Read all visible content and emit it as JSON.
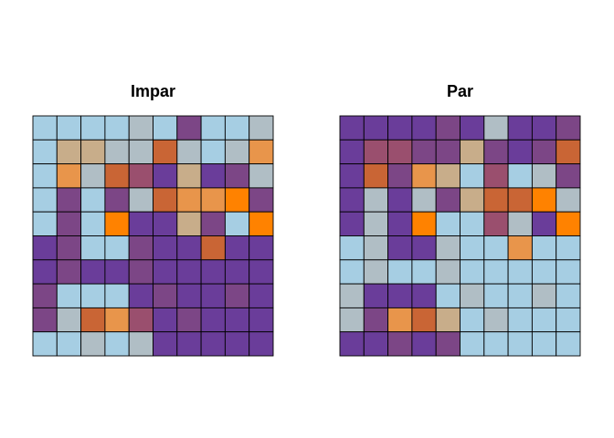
{
  "palette": {
    "L": "#a6cee3",
    "T": "#c8ad8a",
    "G": "#b0bec5",
    "D": "#c96535",
    "O": "#e8954b",
    "F": "#ff8200",
    "P": "#6a3d9a",
    "M": "#7c4686",
    "R": "#9a4f6e"
  },
  "chart_data": [
    {
      "type": "heatmap",
      "title": "Impar",
      "grid": [
        [
          "L",
          "L",
          "L",
          "L",
          "G",
          "L",
          "M",
          "L",
          "L",
          "G"
        ],
        [
          "L",
          "T",
          "T",
          "G",
          "G",
          "D",
          "G",
          "L",
          "G",
          "O"
        ],
        [
          "L",
          "O",
          "G",
          "D",
          "R",
          "P",
          "T",
          "P",
          "M",
          "G"
        ],
        [
          "L",
          "M",
          "L",
          "M",
          "G",
          "D",
          "O",
          "O",
          "F",
          "M"
        ],
        [
          "L",
          "M",
          "L",
          "F",
          "P",
          "P",
          "T",
          "M",
          "L",
          "F"
        ],
        [
          "P",
          "M",
          "L",
          "L",
          "M",
          "P",
          "P",
          "D",
          "P",
          "P"
        ],
        [
          "P",
          "M",
          "P",
          "P",
          "M",
          "P",
          "P",
          "P",
          "P",
          "P"
        ],
        [
          "M",
          "L",
          "L",
          "L",
          "P",
          "M",
          "P",
          "P",
          "M",
          "P"
        ],
        [
          "M",
          "G",
          "D",
          "O",
          "R",
          "P",
          "M",
          "P",
          "P",
          "P"
        ],
        [
          "L",
          "L",
          "G",
          "L",
          "G",
          "P",
          "P",
          "P",
          "P",
          "P"
        ]
      ]
    },
    {
      "type": "heatmap",
      "title": "Par",
      "grid": [
        [
          "P",
          "P",
          "P",
          "P",
          "M",
          "P",
          "G",
          "P",
          "P",
          "M"
        ],
        [
          "P",
          "R",
          "R",
          "M",
          "M",
          "T",
          "M",
          "P",
          "M",
          "D"
        ],
        [
          "P",
          "D",
          "M",
          "O",
          "T",
          "L",
          "R",
          "L",
          "G",
          "M"
        ],
        [
          "P",
          "G",
          "P",
          "G",
          "M",
          "T",
          "D",
          "D",
          "F",
          "G"
        ],
        [
          "P",
          "G",
          "P",
          "F",
          "L",
          "L",
          "R",
          "G",
          "P",
          "F"
        ],
        [
          "L",
          "G",
          "P",
          "P",
          "G",
          "L",
          "L",
          "O",
          "L",
          "L"
        ],
        [
          "L",
          "G",
          "L",
          "L",
          "G",
          "L",
          "L",
          "L",
          "L",
          "L"
        ],
        [
          "G",
          "P",
          "P",
          "P",
          "L",
          "G",
          "L",
          "L",
          "G",
          "L"
        ],
        [
          "G",
          "M",
          "O",
          "D",
          "T",
          "L",
          "G",
          "L",
          "L",
          "L"
        ],
        [
          "P",
          "P",
          "M",
          "P",
          "M",
          "L",
          "L",
          "L",
          "L",
          "L"
        ]
      ]
    }
  ]
}
